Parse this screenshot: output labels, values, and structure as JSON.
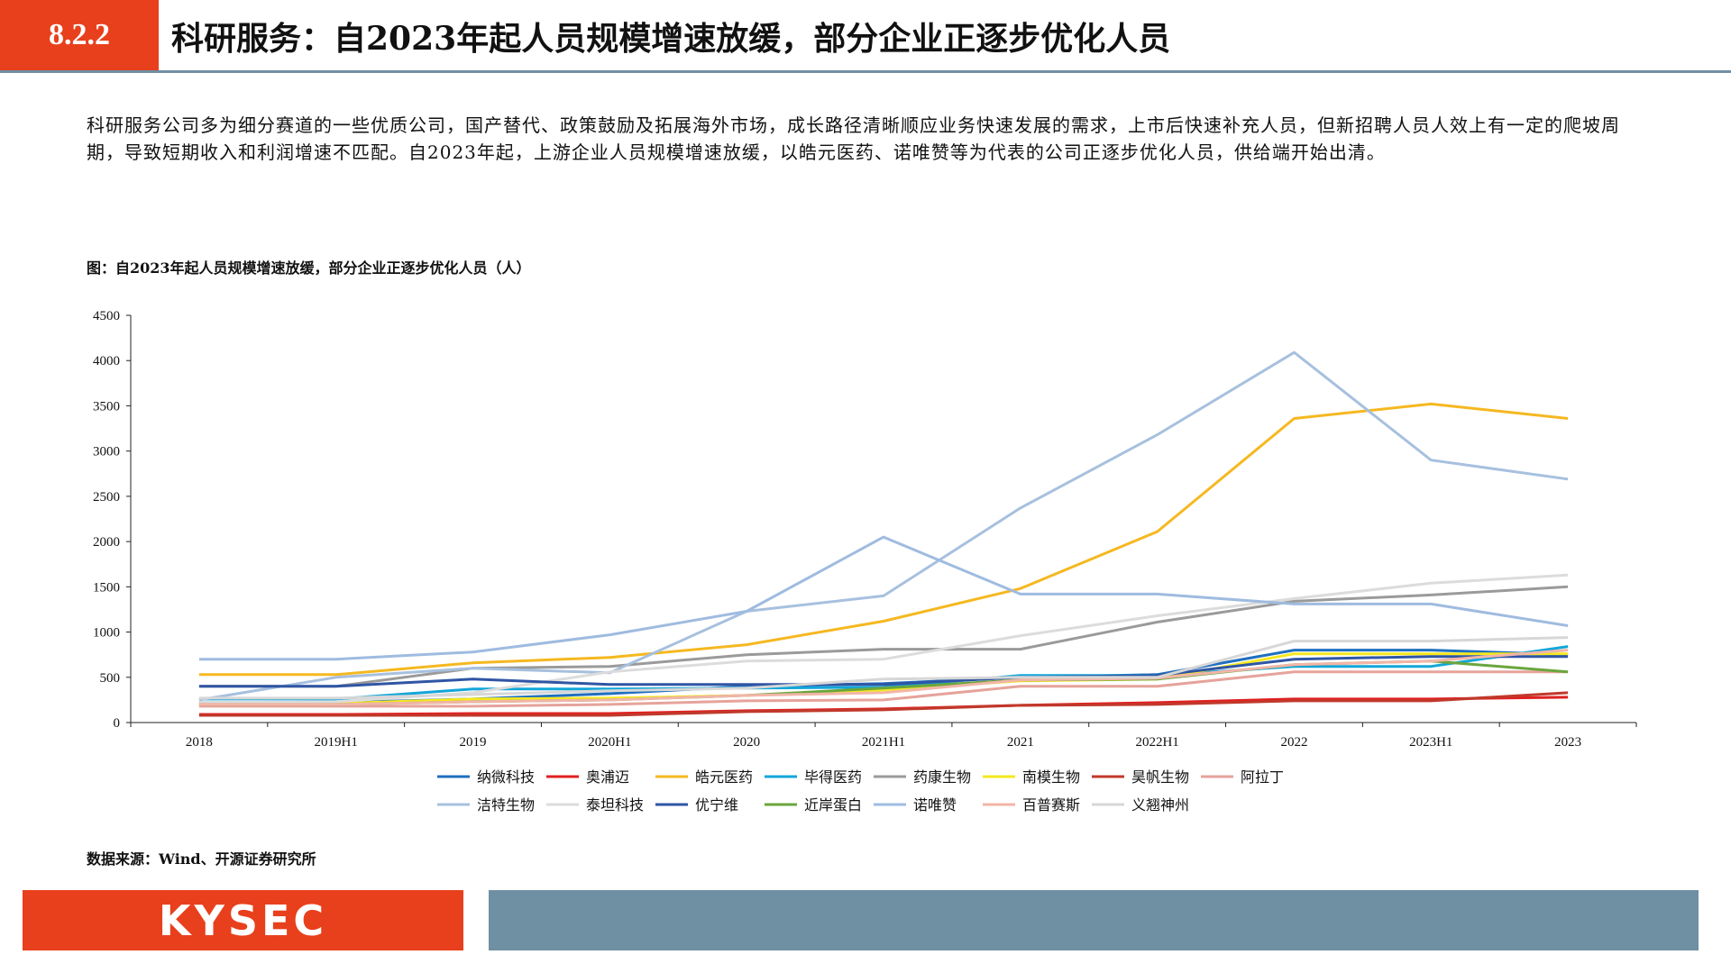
{
  "header": {
    "section_number": "8.2.2",
    "title": "科研服务：自2023年起人员规模增速放缓，部分企业正逐步优化人员"
  },
  "intro_text": "科研服务公司多为细分赛道的一些优质公司，国产替代、政策鼓励及拓展海外市场，成长路径清晰顺应业务快速发展的需求，上市后快速补充人员，但新招聘人员人效上有一定的爬坡周期，导致短期收入和利润增速不匹配。自2023年起，上游企业人员规模增速放缓，以皓元医药、诺唯赞等为代表的公司正逐步优化人员，供给端开始出清。",
  "figure_title": "图：自2023年起人员规模增速放缓，部分企业正逐步优化人员（人）",
  "source": "数据来源：Wind、开源证券研究所",
  "footer": {
    "logo_text": "KYSEC"
  },
  "colors": {
    "accent": "#e8401c",
    "rule": "#6f8fa3"
  },
  "chart_data": {
    "type": "line",
    "categories": [
      "2018",
      "2019H1",
      "2019",
      "2020H1",
      "2020",
      "2021H1",
      "2021",
      "2022H1",
      "2022",
      "2023H1",
      "2023"
    ],
    "ylim": [
      0,
      4500
    ],
    "yticks": [
      0,
      500,
      1000,
      1500,
      2000,
      2500,
      3000,
      3500,
      4000,
      4500
    ],
    "grid": false,
    "legend_position": "bottom",
    "series": [
      {
        "name": "纳微科技",
        "color": "#1f6fbf",
        "values": [
          220,
          220,
          260,
          320,
          400,
          430,
          500,
          530,
          800,
          800,
          750
        ]
      },
      {
        "name": "奥浦迈",
        "color": "#e02020",
        "values": [
          90,
          90,
          100,
          100,
          130,
          150,
          190,
          220,
          260,
          260,
          280
        ]
      },
      {
        "name": "皓元医药",
        "color": "#f5b820",
        "values": [
          530,
          530,
          660,
          720,
          860,
          1120,
          1480,
          2110,
          3360,
          3520,
          3360
        ]
      },
      {
        "name": "毕得医药",
        "color": "#12a6d9",
        "values": [
          260,
          260,
          370,
          370,
          380,
          390,
          520,
          520,
          620,
          620,
          840
        ]
      },
      {
        "name": "药康生物",
        "color": "#9a9a9a",
        "values": [
          400,
          400,
          600,
          620,
          750,
          810,
          810,
          1110,
          1340,
          1410,
          1500
        ]
      },
      {
        "name": "南模生物",
        "color": "#f5e81e",
        "values": [
          200,
          210,
          260,
          270,
          300,
          360,
          460,
          480,
          760,
          760,
          760
        ]
      },
      {
        "name": "昊帆生物",
        "color": "#c0392b",
        "values": [
          80,
          80,
          80,
          80,
          120,
          140,
          190,
          200,
          240,
          240,
          330
        ]
      },
      {
        "name": "阿拉丁",
        "color": "#e6a39b",
        "values": [
          180,
          180,
          180,
          200,
          240,
          250,
          400,
          400,
          560,
          560,
          560
        ]
      },
      {
        "name": "洁特生物",
        "color": "#a7c0de",
        "values": [
          250,
          500,
          600,
          550,
          1230,
          1400,
          2370,
          3180,
          4090,
          2900,
          2690
        ]
      },
      {
        "name": "泰坦科技",
        "color": "#dcdcdc",
        "values": [
          220,
          230,
          330,
          560,
          680,
          700,
          960,
          1180,
          1370,
          1540,
          1630
        ]
      },
      {
        "name": "优宁维",
        "color": "#2f55a4",
        "values": [
          400,
          400,
          480,
          420,
          420,
          420,
          500,
          520,
          700,
          730,
          730
        ]
      },
      {
        "name": "近岸蛋白",
        "color": "#6aa63c",
        "values": [
          200,
          200,
          230,
          250,
          300,
          380,
          470,
          480,
          640,
          680,
          560
        ]
      },
      {
        "name": "诺唯赞",
        "color": "#9fbbe0",
        "values": [
          700,
          700,
          780,
          970,
          1230,
          2050,
          1420,
          1420,
          1310,
          1310,
          1070
        ]
      },
      {
        "name": "百普赛斯",
        "color": "#f2b5a8",
        "values": [
          200,
          200,
          230,
          250,
          300,
          330,
          470,
          490,
          640,
          680,
          800
        ]
      },
      {
        "name": "义翘神州",
        "color": "#d7d7d7",
        "values": [
          270,
          270,
          310,
          350,
          380,
          480,
          500,
          500,
          900,
          900,
          940
        ]
      }
    ]
  }
}
